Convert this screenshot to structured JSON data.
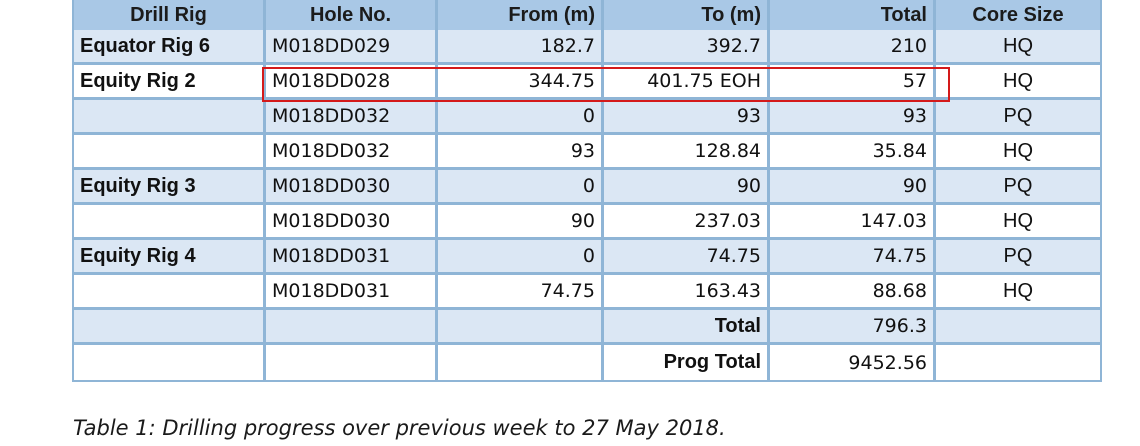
{
  "table": {
    "headers": [
      "Drill Rig",
      "Hole No.",
      "From (m)",
      "To (m)",
      "Total",
      "Core Size"
    ],
    "rows": [
      [
        "Equator Rig 6",
        "M018DD029",
        "182.7",
        "392.7",
        "210",
        "HQ"
      ],
      [
        "Equity Rig 2",
        "M018DD028",
        "344.75",
        "401.75 EOH",
        "57",
        "HQ"
      ],
      [
        "",
        "M018DD032",
        "0",
        "93",
        "93",
        "PQ"
      ],
      [
        "",
        "M018DD032",
        "93",
        "128.84",
        "35.84",
        "HQ"
      ],
      [
        "Equity Rig 3",
        "M018DD030",
        "0",
        "90",
        "90",
        "PQ"
      ],
      [
        "",
        "M018DD030",
        "90",
        "237.03",
        "147.03",
        "HQ"
      ],
      [
        "Equity Rig 4",
        "M018DD031",
        "0",
        "74.75",
        "74.75",
        "PQ"
      ],
      [
        "",
        "M018DD031",
        "74.75",
        "163.43",
        "88.68",
        "HQ"
      ]
    ],
    "total_row": {
      "label": "Total",
      "value": "796.3"
    },
    "prog_total_row": {
      "label": "Prog Total",
      "value": "9452.56"
    },
    "highlight_color": "#d41a1a",
    "header_color": "#a9c8e6",
    "band_color": "#dbe7f4",
    "grid_color": "#8fb5d6"
  },
  "caption": "Table 1: Drilling progress over previous week to 27 May 2018."
}
